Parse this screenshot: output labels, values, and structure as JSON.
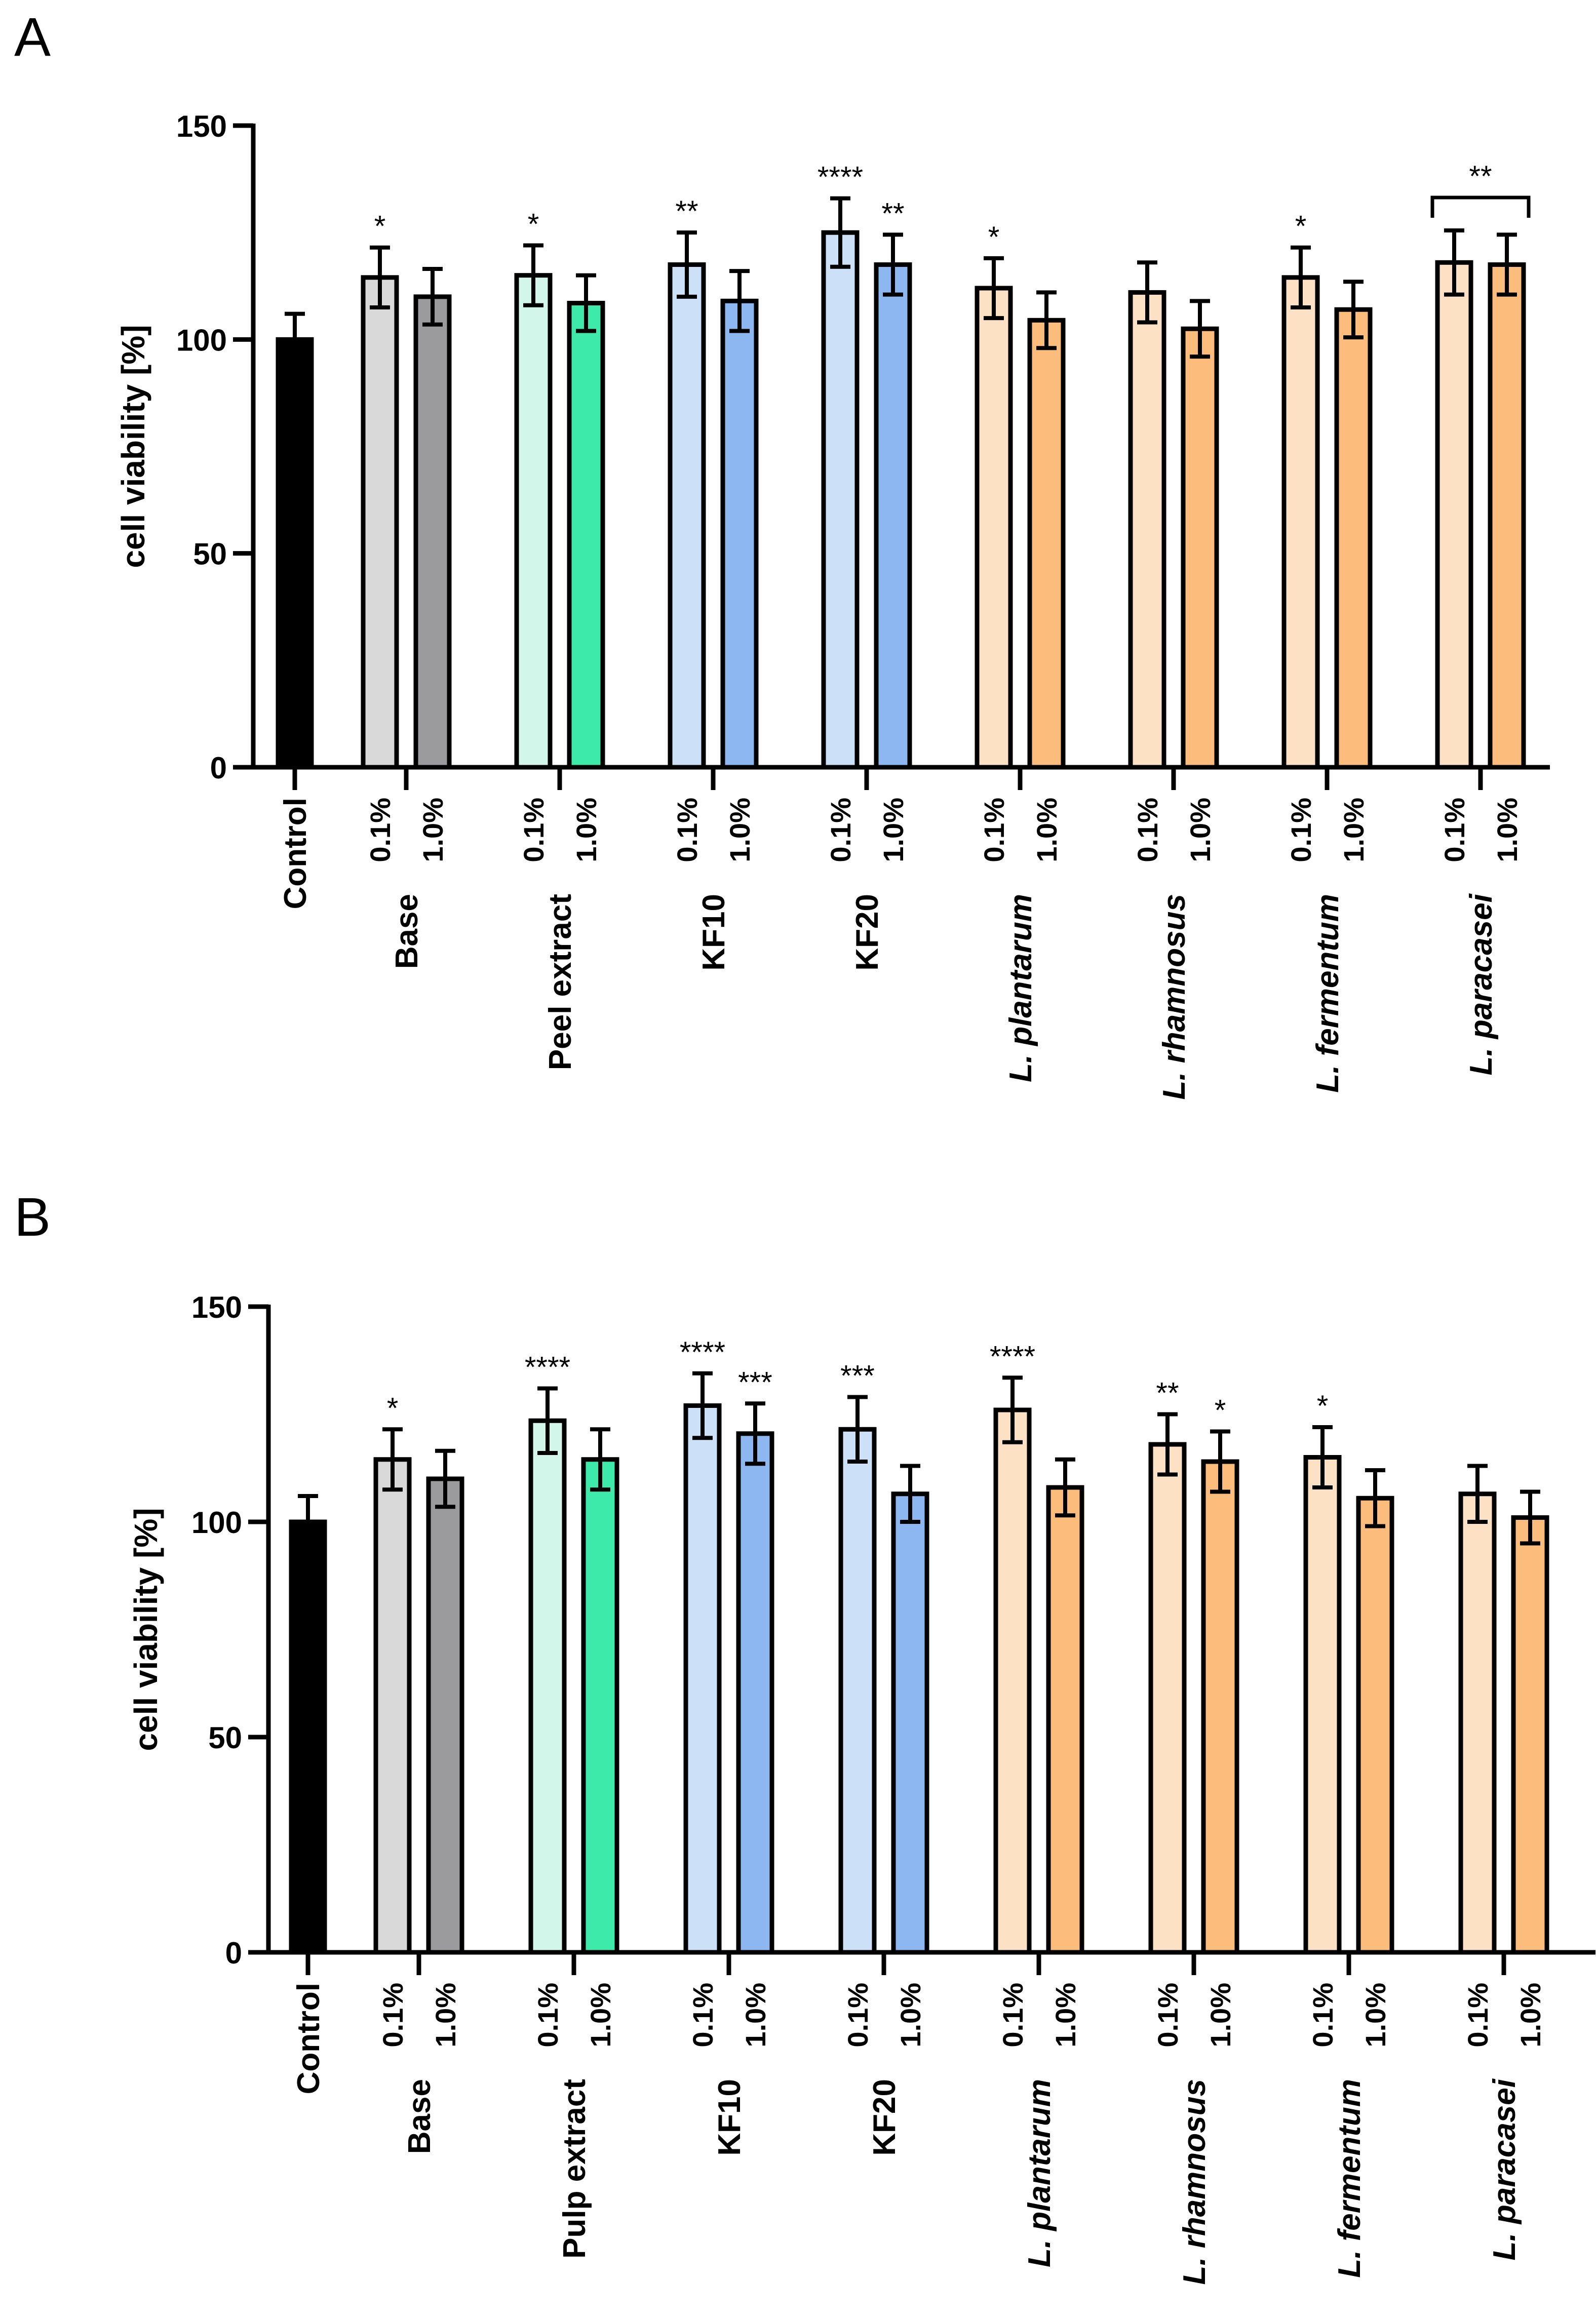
{
  "chart_data": [
    {
      "type": "bar",
      "panel_label": "A",
      "ylabel": "cell viability [%]",
      "ylim": [
        0,
        150
      ],
      "yticks": [
        "0",
        "50",
        "100",
        "150"
      ],
      "groups": [
        {
          "name": "Control",
          "italic": false,
          "bars": [
            {
              "dose": "",
              "value": 100,
              "err": 6,
              "sig": "",
              "color": "#000000"
            }
          ]
        },
        {
          "name": "Base",
          "italic": false,
          "bars": [
            {
              "dose": "0.1%",
              "value": 114.5,
              "err": 7,
              "sig": "*",
              "color": "#d9d9d9"
            },
            {
              "dose": "1.0%",
              "value": 110,
              "err": 6.5,
              "sig": "",
              "color": "#9b9b9e"
            }
          ]
        },
        {
          "name": "Peel extract",
          "italic": false,
          "bars": [
            {
              "dose": "0.1%",
              "value": 115,
              "err": 7,
              "sig": "*",
              "color": "#d2f7ea"
            },
            {
              "dose": "1.0%",
              "value": 108.5,
              "err": 6.5,
              "sig": "",
              "color": "#3deaaa"
            }
          ]
        },
        {
          "name": "KF10",
          "italic": false,
          "bars": [
            {
              "dose": "0.1%",
              "value": 117.5,
              "err": 7.5,
              "sig": "**",
              "color": "#cce0f8"
            },
            {
              "dose": "1.0%",
              "value": 109,
              "err": 7,
              "sig": "",
              "color": "#8cb7f0"
            }
          ]
        },
        {
          "name": "KF20",
          "italic": false,
          "bars": [
            {
              "dose": "0.1%",
              "value": 125,
              "err": 8,
              "sig": "****",
              "color": "#cce0f8"
            },
            {
              "dose": "1.0%",
              "value": 117.5,
              "err": 7,
              "sig": "**",
              "color": "#8cb7f0"
            }
          ]
        },
        {
          "name": "L. plantarum",
          "italic": true,
          "bars": [
            {
              "dose": "0.1%",
              "value": 112,
              "err": 7,
              "sig": "*",
              "color": "#fde1c4"
            },
            {
              "dose": "1.0%",
              "value": 104.5,
              "err": 6.5,
              "sig": "",
              "color": "#fcbc7c"
            }
          ]
        },
        {
          "name": "L. rhamnosus",
          "italic": true,
          "bars": [
            {
              "dose": "0.1%",
              "value": 111,
              "err": 7,
              "sig": "",
              "color": "#fde1c4"
            },
            {
              "dose": "1.0%",
              "value": 102.5,
              "err": 6.5,
              "sig": "",
              "color": "#fcbc7c"
            }
          ]
        },
        {
          "name": "L. fermentum",
          "italic": true,
          "bars": [
            {
              "dose": "0.1%",
              "value": 114.5,
              "err": 7,
              "sig": "*",
              "color": "#fde1c4"
            },
            {
              "dose": "1.0%",
              "value": 107,
              "err": 6.5,
              "sig": "",
              "color": "#fcbc7c"
            }
          ]
        },
        {
          "name": "L. paracasei",
          "italic": true,
          "bracket_sig": "**",
          "bars": [
            {
              "dose": "0.1%",
              "value": 118,
              "err": 7.5,
              "sig": "",
              "color": "#fde1c4"
            },
            {
              "dose": "1.0%",
              "value": 117.5,
              "err": 7,
              "sig": "",
              "color": "#fcbc7c"
            }
          ]
        }
      ]
    },
    {
      "type": "bar",
      "panel_label": "B",
      "ylabel": "cell viability [%]",
      "ylim": [
        0,
        150
      ],
      "yticks": [
        "0",
        "50",
        "100",
        "150"
      ],
      "groups": [
        {
          "name": "Control",
          "italic": false,
          "bars": [
            {
              "dose": "",
              "value": 100,
              "err": 6,
              "sig": "",
              "color": "#000000"
            }
          ]
        },
        {
          "name": "Base",
          "italic": false,
          "bars": [
            {
              "dose": "0.1%",
              "value": 114.5,
              "err": 7,
              "sig": "*",
              "color": "#d9d9d9"
            },
            {
              "dose": "1.0%",
              "value": 110,
              "err": 6.5,
              "sig": "",
              "color": "#9b9b9e"
            }
          ]
        },
        {
          "name": "Pulp extract",
          "italic": false,
          "bars": [
            {
              "dose": "0.1%",
              "value": 123.5,
              "err": 7.5,
              "sig": "****",
              "color": "#d2f7ea"
            },
            {
              "dose": "1.0%",
              "value": 114.5,
              "err": 7,
              "sig": "",
              "color": "#3deaaa"
            }
          ]
        },
        {
          "name": "KF10",
          "italic": false,
          "bars": [
            {
              "dose": "0.1%",
              "value": 127,
              "err": 7.5,
              "sig": "****",
              "color": "#cce0f8"
            },
            {
              "dose": "1.0%",
              "value": 120.5,
              "err": 7,
              "sig": "***",
              "color": "#8cb7f0"
            }
          ]
        },
        {
          "name": "KF20",
          "italic": false,
          "bars": [
            {
              "dose": "0.1%",
              "value": 121.5,
              "err": 7.5,
              "sig": "***",
              "color": "#cce0f8"
            },
            {
              "dose": "1.0%",
              "value": 106.5,
              "err": 6.5,
              "sig": "",
              "color": "#8cb7f0"
            }
          ]
        },
        {
          "name": "L. plantarum",
          "italic": true,
          "bars": [
            {
              "dose": "0.1%",
              "value": 126,
              "err": 7.5,
              "sig": "****",
              "color": "#fde1c4"
            },
            {
              "dose": "1.0%",
              "value": 108,
              "err": 6.5,
              "sig": "",
              "color": "#fcbc7c"
            }
          ]
        },
        {
          "name": "L. rhamnosus",
          "italic": true,
          "bars": [
            {
              "dose": "0.1%",
              "value": 118,
              "err": 7,
              "sig": "**",
              "color": "#fde1c4"
            },
            {
              "dose": "1.0%",
              "value": 114,
              "err": 7,
              "sig": "*",
              "color": "#fcbc7c"
            }
          ]
        },
        {
          "name": "L. fermentum",
          "italic": true,
          "bars": [
            {
              "dose": "0.1%",
              "value": 115,
              "err": 7,
              "sig": "*",
              "color": "#fde1c4"
            },
            {
              "dose": "1.0%",
              "value": 105.5,
              "err": 6.5,
              "sig": "",
              "color": "#fcbc7c"
            }
          ]
        },
        {
          "name": "L. paracasei",
          "italic": true,
          "bars": [
            {
              "dose": "0.1%",
              "value": 106.5,
              "err": 6.5,
              "sig": "",
              "color": "#fde1c4"
            },
            {
              "dose": "1.0%",
              "value": 101,
              "err": 6,
              "sig": "",
              "color": "#fcbc7c"
            }
          ]
        }
      ]
    }
  ]
}
